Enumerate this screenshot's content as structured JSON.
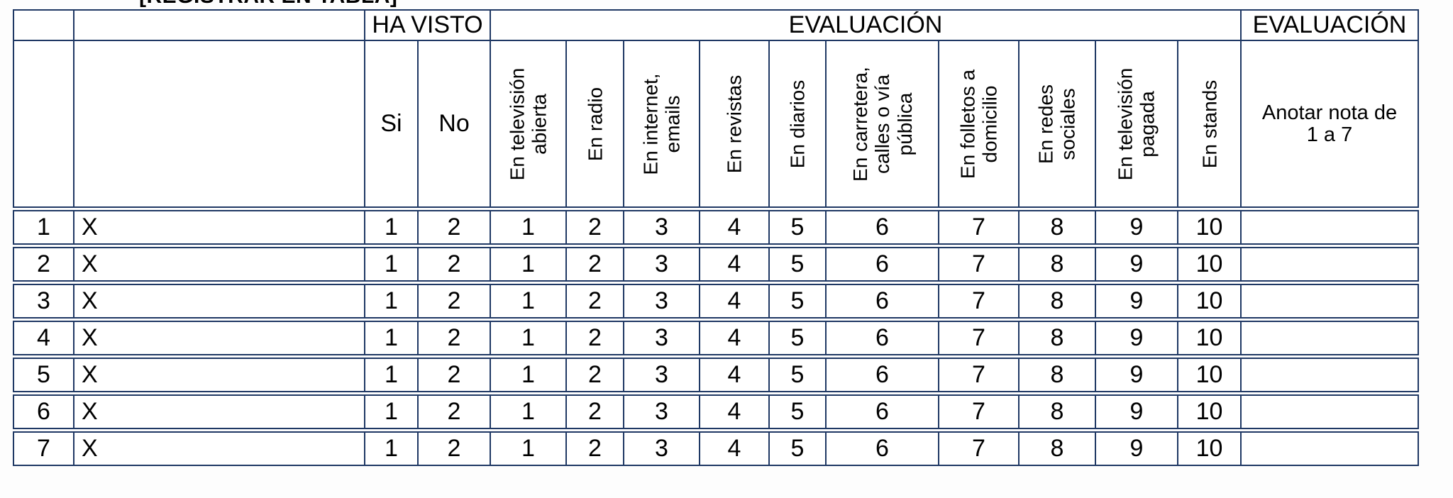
{
  "page": {
    "top_clipped_text": "[REGISTRAR EN TABLA]"
  },
  "colors": {
    "table_border": "#1f3864",
    "text": "#000000",
    "background": "#ffffff"
  },
  "table": {
    "header": {
      "ha_visto": "HA VISTO",
      "evaluacion_media": "EVALUACIÓN",
      "evaluacion_nota": "EVALUACIÓN",
      "si": "Si",
      "no": "No",
      "media_columns": [
        "En televisión\nabierta",
        "En radio",
        "En internet,\nemails",
        "En revistas",
        "En diarios",
        "En carretera,\ncalles o vía\npública",
        "En folletos a\ndomicilio",
        "En redes\nsociales",
        "En televisión\npagada",
        "En stands"
      ],
      "nota_label": "Anotar nota de\n1 a 7"
    },
    "rows": [
      {
        "num": "1",
        "item": "X",
        "si": "1",
        "no": "2",
        "values": [
          "1",
          "2",
          "3",
          "4",
          "5",
          "6",
          "7",
          "8",
          "9",
          "10"
        ],
        "nota": ""
      },
      {
        "num": "2",
        "item": "X",
        "si": "1",
        "no": "2",
        "values": [
          "1",
          "2",
          "3",
          "4",
          "5",
          "6",
          "7",
          "8",
          "9",
          "10"
        ],
        "nota": ""
      },
      {
        "num": "3",
        "item": "X",
        "si": "1",
        "no": "2",
        "values": [
          "1",
          "2",
          "3",
          "4",
          "5",
          "6",
          "7",
          "8",
          "9",
          "10"
        ],
        "nota": ""
      },
      {
        "num": "4",
        "item": "X",
        "si": "1",
        "no": "2",
        "values": [
          "1",
          "2",
          "3",
          "4",
          "5",
          "6",
          "7",
          "8",
          "9",
          "10"
        ],
        "nota": ""
      },
      {
        "num": "5",
        "item": "X",
        "si": "1",
        "no": "2",
        "values": [
          "1",
          "2",
          "3",
          "4",
          "5",
          "6",
          "7",
          "8",
          "9",
          "10"
        ],
        "nota": ""
      },
      {
        "num": "6",
        "item": "X",
        "si": "1",
        "no": "2",
        "values": [
          "1",
          "2",
          "3",
          "4",
          "5",
          "6",
          "7",
          "8",
          "9",
          "10"
        ],
        "nota": ""
      },
      {
        "num": "7",
        "item": "X",
        "si": "1",
        "no": "2",
        "values": [
          "1",
          "2",
          "3",
          "4",
          "5",
          "6",
          "7",
          "8",
          "9",
          "10"
        ],
        "nota": ""
      }
    ]
  }
}
